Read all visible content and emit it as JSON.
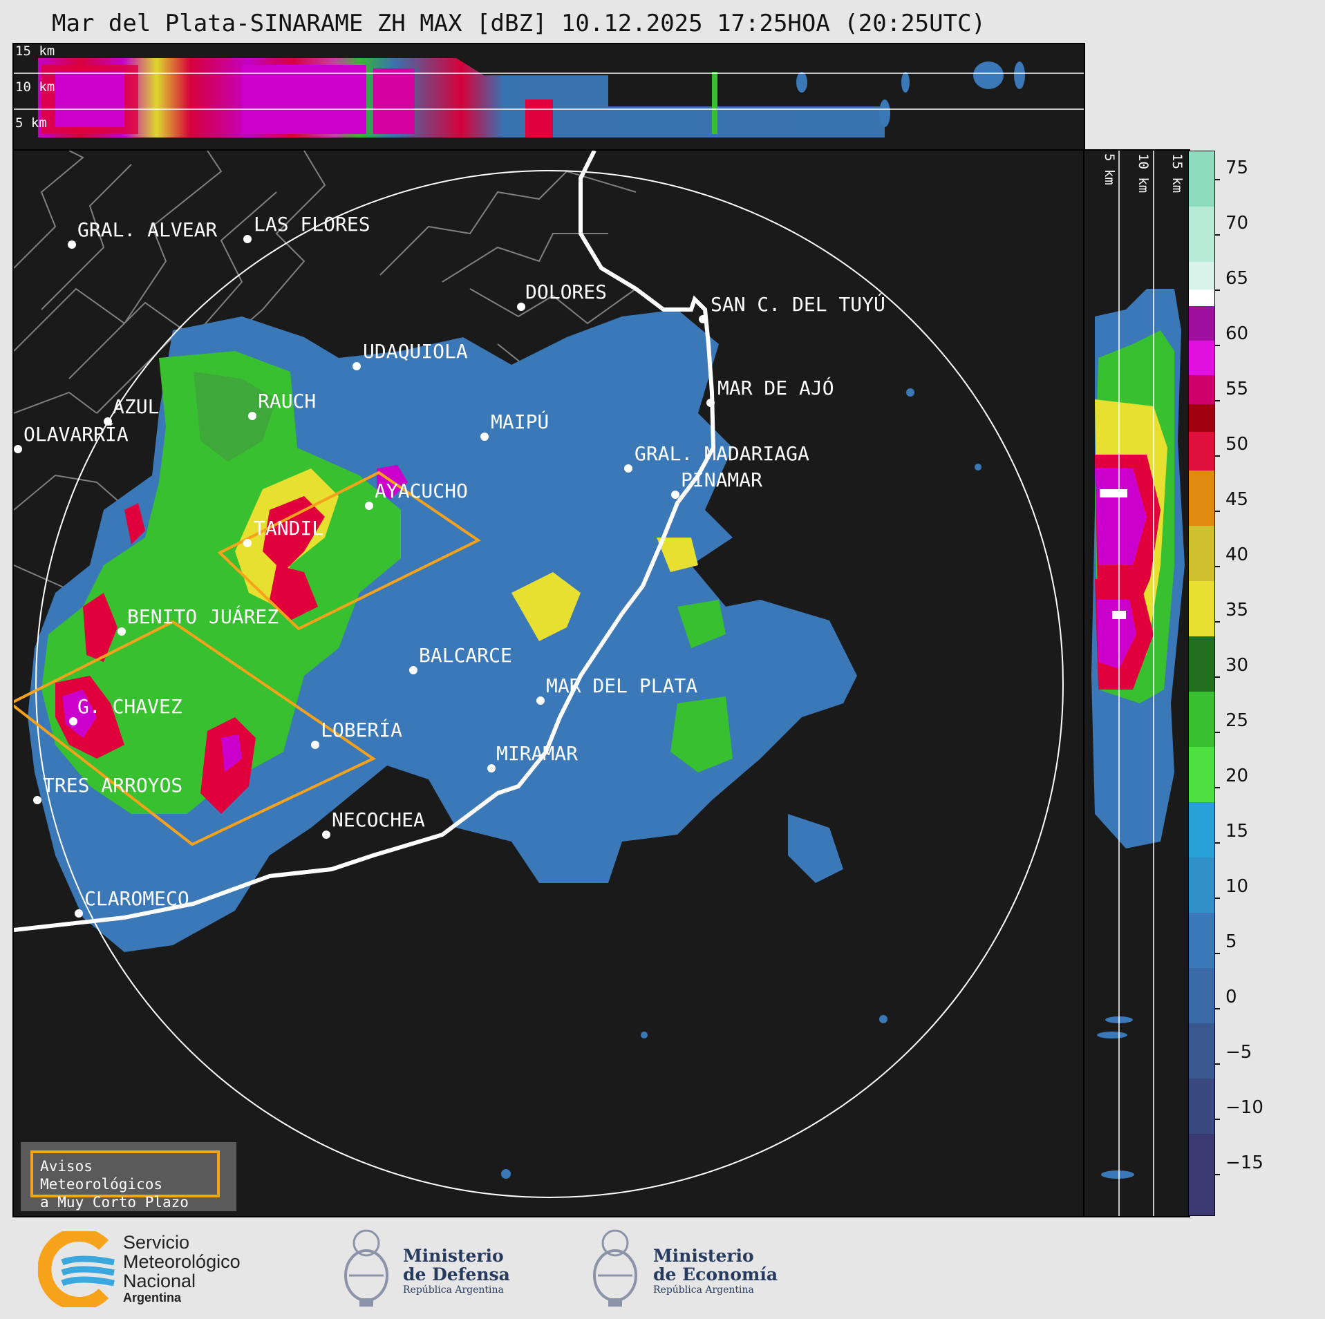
{
  "title": "Mar del Plata-SINARAME ZH MAX [dBZ] 10.12.2025 17:25HOA (20:25UTC)",
  "top_panel": {
    "height_labels": [
      "15 km",
      "10 km",
      "5 km"
    ]
  },
  "side_panel": {
    "height_labels": [
      "5 km",
      "10 km",
      "15 km"
    ]
  },
  "map": {
    "cities": [
      {
        "name": "GRAL. ALVEAR"
      },
      {
        "name": "LAS FLORES"
      },
      {
        "name": "DOLORES"
      },
      {
        "name": "SAN C. DEL TUYÚ"
      },
      {
        "name": "UDAQUIOLA"
      },
      {
        "name": "MAR DE AJÓ"
      },
      {
        "name": "AZUL"
      },
      {
        "name": "RAUCH"
      },
      {
        "name": "MAIPÚ"
      },
      {
        "name": "OLAVARRÍA"
      },
      {
        "name": "GRAL. MADARIAGA"
      },
      {
        "name": "PINAMAR"
      },
      {
        "name": "AYACUCHO"
      },
      {
        "name": "TANDIL"
      },
      {
        "name": "BENITO JUÁREZ"
      },
      {
        "name": "BALCARCE"
      },
      {
        "name": "MAR DEL PLATA"
      },
      {
        "name": "G. CHAVEZ"
      },
      {
        "name": "LOBERÍA"
      },
      {
        "name": "MIRAMAR"
      },
      {
        "name": "TRES ARROYOS"
      },
      {
        "name": "NECOCHEA"
      },
      {
        "name": "CLAROMECO"
      }
    ],
    "legend": {
      "line1": "Avisos Meteorológicos",
      "line2": "a Muy Corto Plazo",
      "color": "#f7a21b"
    }
  },
  "colorbar": {
    "unit": "dBZ",
    "ticks": [
      "75",
      "70",
      "65",
      "60",
      "55",
      "50",
      "45",
      "40",
      "35",
      "30",
      "25",
      "20",
      "15",
      "10",
      "5",
      "0",
      "−5",
      "−10",
      "−15"
    ],
    "range": [
      -20,
      77
    ]
  },
  "logos": {
    "smn": {
      "line1": "Servicio",
      "line2": "Meteorológico",
      "line3": "Nacional",
      "line4": "Argentina"
    },
    "defensa": {
      "line1": "Ministerio",
      "line2": "de Defensa",
      "line3": "República Argentina"
    },
    "economia": {
      "line1": "Ministerio",
      "line2": "de Economía",
      "line3": "República Argentina"
    }
  },
  "colors": {
    "background": "#1a1a1a",
    "warning": "#f7a21b",
    "light_echo": "#3a78b8",
    "moderate_echo": "#38c030",
    "heavy_echo": "#e0003c",
    "extreme_echo": "#cc00cc"
  }
}
